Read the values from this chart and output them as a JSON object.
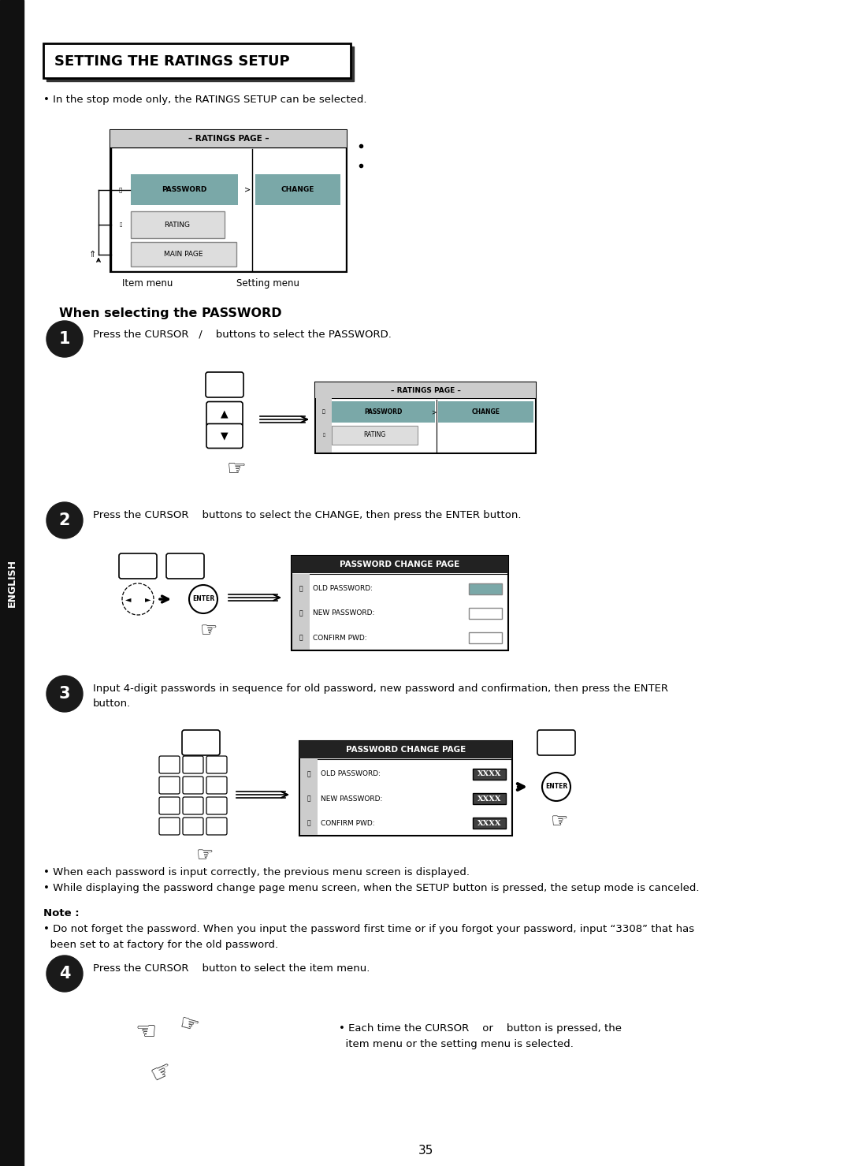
{
  "title": "SETTING THE RATINGS SETUP",
  "page_number": "35",
  "bg_color": "#ffffff",
  "text_color": "#000000",
  "sidebar_color": "#111111",
  "sidebar_text": "ENGLISH",
  "teal_color": "#7aa8a8",
  "box_bg": "#a8c8c8",
  "dark_header": "#222222",
  "bullet_intro": "In the stop mode only, the RATINGS SETUP can be selected.",
  "section_title": "When selecting the PASSWORD",
  "step1_text": "Press the CURSOR   /    buttons to select the PASSWORD.",
  "step2_text": "Press the CURSOR    buttons to select the CHANGE, then press the ENTER button.",
  "step3_text_1": "Input 4-digit passwords in sequence for old password, new password and confirmation, then press the ENTER",
  "step3_text_2": "button.",
  "step4_text": "Press the CURSOR    button to select the item menu.",
  "step4_note_1": "• Each time the CURSOR    or    button is pressed, the",
  "step4_note_2": "  item menu or the setting menu is selected.",
  "bullet1": "• When each password is input correctly, the previous menu screen is displayed.",
  "bullet2": "• While displaying the password change page menu screen, when the SETUP button is pressed, the setup mode is canceled.",
  "note_title": "Note :",
  "note_text_1": "• Do not forget the password. When you input the password first time or if you forgot your password, input “3308” that has",
  "note_text_2": "  been set to at factory for the old password.",
  "ratings_page_label": "– RATINGS PAGE –",
  "password_label": "PASSWORD",
  "change_label": "CHANGE",
  "rating_label": "RATING",
  "main_page_label": "MAIN PAGE",
  "item_menu_label": "Item menu",
  "setting_menu_label": "Setting menu",
  "pwd_change_page_label": "PASSWORD CHANGE PAGE",
  "old_pwd_label": "OLD PASSWORD:",
  "new_pwd_label": "NEW PASSWORD:",
  "confirm_pwd_label": "CONFIRM PWD:",
  "xxxx": "XXXX"
}
